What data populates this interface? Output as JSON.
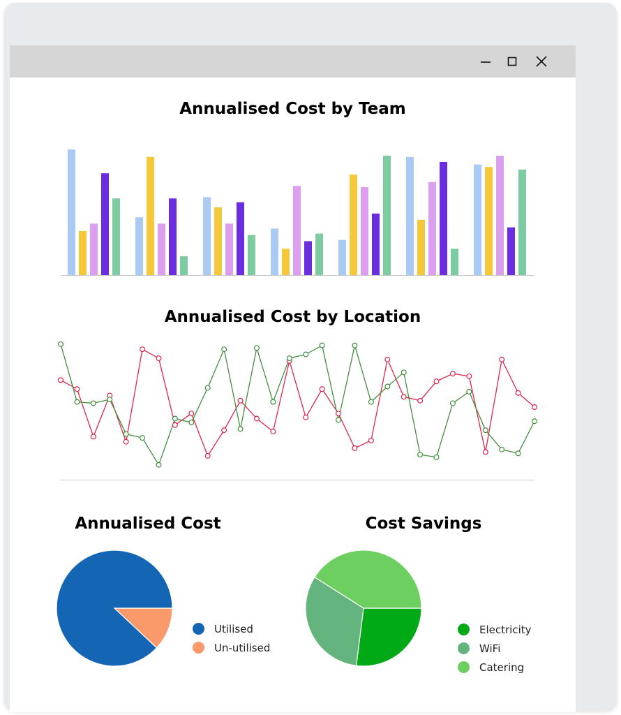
{
  "window": {
    "controls": [
      "minimize",
      "maximize",
      "close"
    ]
  },
  "chart_data": [
    {
      "type": "bar",
      "title": "Annualised Cost by Team",
      "xlabel": "",
      "ylabel": "",
      "categories": [
        "",
        "",
        "",
        "",
        "",
        "",
        ""
      ],
      "ylim": [
        0,
        100
      ],
      "grid": false,
      "colors": [
        "#a8caf3",
        "#f5c83a",
        "#dc9ff0",
        "#6a2ee0",
        "#7dcba0"
      ],
      "series": [
        {
          "values": [
            100,
            46,
            62,
            37,
            28,
            94,
            88
          ]
        },
        {
          "values": [
            35,
            94,
            54,
            21,
            80,
            44,
            86
          ]
        },
        {
          "values": [
            41,
            41,
            41,
            71,
            70,
            74,
            95
          ]
        },
        {
          "values": [
            81,
            61,
            58,
            27,
            49,
            90,
            38
          ]
        },
        {
          "values": [
            61,
            15,
            32,
            33,
            95,
            21,
            84
          ]
        }
      ]
    },
    {
      "type": "line",
      "title": "Annualised Cost by Location",
      "xlabel": "",
      "ylabel": "",
      "x": [
        0,
        1,
        2,
        3,
        4,
        5,
        6,
        7,
        8,
        9,
        10,
        11,
        12,
        13,
        14,
        15,
        16,
        17,
        18,
        19,
        20,
        21,
        22,
        23,
        24,
        25,
        26,
        27,
        28,
        29
      ],
      "ylim": [
        0,
        100
      ],
      "grid": false,
      "colors": [
        "#e0244c",
        "#3f8f3a"
      ],
      "series": [
        {
          "values": [
            71,
            64,
            27,
            59,
            23,
            95,
            88,
            36,
            45,
            12,
            32,
            55,
            41,
            31,
            86,
            42,
            64,
            45,
            18,
            24,
            87,
            58,
            55,
            70,
            76,
            74,
            15,
            87,
            61,
            50
          ]
        },
        {
          "values": [
            99,
            54,
            53,
            56,
            29,
            26,
            5,
            41,
            38,
            65,
            95,
            33,
            96,
            54,
            88,
            91,
            98,
            40,
            98,
            54,
            66,
            77,
            13,
            11,
            53,
            62,
            32,
            17,
            14,
            39
          ]
        }
      ]
    },
    {
      "type": "pie",
      "title": "Annualised Cost",
      "categories": [
        "Utilised",
        "Un-utilised"
      ],
      "values": [
        88,
        12
      ],
      "colors": [
        "#1565b5",
        "#fa9a6a"
      ],
      "legend": "right"
    },
    {
      "type": "pie",
      "title": "Cost Savings",
      "categories": [
        "Electricity",
        "WiFi",
        "Catering"
      ],
      "values": [
        27,
        32,
        41
      ],
      "colors": [
        "#00aa17",
        "#63b57d",
        "#6ccf5f"
      ],
      "legend": "right"
    }
  ]
}
